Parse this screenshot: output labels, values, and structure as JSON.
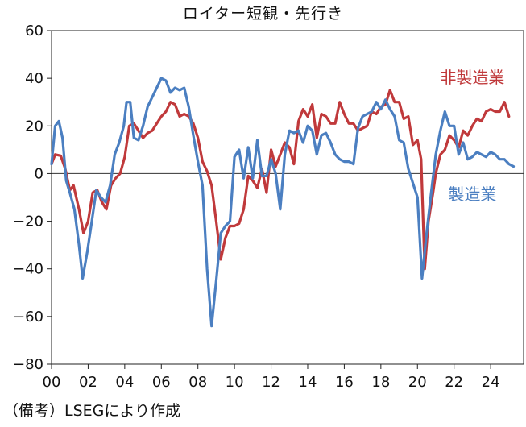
{
  "title": "ロイター短観・先行き",
  "note": "（備考）LSEGにより作成",
  "chart_data": {
    "type": "line",
    "title": "ロイター短観・先行き",
    "ylim": [
      -80,
      60
    ],
    "yticks": [
      60,
      40,
      20,
      0,
      -20,
      -40,
      -60,
      -80
    ],
    "xlim": [
      2000,
      2025.8
    ],
    "xticks": [
      {
        "value": 2000,
        "label": "00"
      },
      {
        "value": 2002,
        "label": "02"
      },
      {
        "value": 2004,
        "label": "04"
      },
      {
        "value": 2006,
        "label": "06"
      },
      {
        "value": 2008,
        "label": "08"
      },
      {
        "value": 2010,
        "label": "10"
      },
      {
        "value": 2012,
        "label": "12"
      },
      {
        "value": 2014,
        "label": "14"
      },
      {
        "value": 2016,
        "label": "16"
      },
      {
        "value": 2018,
        "label": "18"
      },
      {
        "value": 2020,
        "label": "20"
      },
      {
        "value": 2022,
        "label": "22"
      },
      {
        "value": 2024,
        "label": "24"
      }
    ],
    "zero_line": true,
    "series": [
      {
        "name": "非製造業",
        "color": "#c0393b",
        "label_position": {
          "x": 2023.0,
          "y": 38
        },
        "points": [
          [
            2000.0,
            4
          ],
          [
            2000.2,
            8
          ],
          [
            2000.5,
            7.5
          ],
          [
            2000.75,
            2
          ],
          [
            2001.0,
            -7
          ],
          [
            2001.2,
            -5
          ],
          [
            2001.5,
            -15
          ],
          [
            2001.75,
            -25
          ],
          [
            2002.0,
            -20
          ],
          [
            2002.25,
            -8
          ],
          [
            2002.5,
            -7
          ],
          [
            2002.75,
            -12
          ],
          [
            2003.0,
            -15
          ],
          [
            2003.25,
            -5
          ],
          [
            2003.5,
            -2
          ],
          [
            2003.75,
            0
          ],
          [
            2004.0,
            7
          ],
          [
            2004.25,
            20
          ],
          [
            2004.5,
            21
          ],
          [
            2004.75,
            18
          ],
          [
            2005.0,
            15
          ],
          [
            2005.25,
            17
          ],
          [
            2005.5,
            18
          ],
          [
            2005.75,
            21
          ],
          [
            2006.0,
            24
          ],
          [
            2006.25,
            26
          ],
          [
            2006.5,
            30
          ],
          [
            2006.75,
            29
          ],
          [
            2007.0,
            24
          ],
          [
            2007.25,
            25
          ],
          [
            2007.5,
            24
          ],
          [
            2007.75,
            21
          ],
          [
            2008.0,
            15
          ],
          [
            2008.25,
            5
          ],
          [
            2008.5,
            1
          ],
          [
            2008.75,
            -5
          ],
          [
            2009.0,
            -20
          ],
          [
            2009.25,
            -36
          ],
          [
            2009.5,
            -27
          ],
          [
            2009.75,
            -22
          ],
          [
            2010.0,
            -22
          ],
          [
            2010.25,
            -21
          ],
          [
            2010.5,
            -15
          ],
          [
            2010.75,
            -1
          ],
          [
            2011.0,
            -3
          ],
          [
            2011.25,
            -6
          ],
          [
            2011.5,
            2
          ],
          [
            2011.75,
            -8
          ],
          [
            2012.0,
            10
          ],
          [
            2012.25,
            3
          ],
          [
            2012.5,
            8
          ],
          [
            2012.75,
            13
          ],
          [
            2013.0,
            11
          ],
          [
            2013.25,
            4
          ],
          [
            2013.5,
            22
          ],
          [
            2013.75,
            27
          ],
          [
            2014.0,
            24
          ],
          [
            2014.25,
            29
          ],
          [
            2014.5,
            15
          ],
          [
            2014.75,
            25
          ],
          [
            2015.0,
            24
          ],
          [
            2015.25,
            21
          ],
          [
            2015.5,
            21
          ],
          [
            2015.75,
            30
          ],
          [
            2016.0,
            25
          ],
          [
            2016.25,
            21
          ],
          [
            2016.5,
            21
          ],
          [
            2016.75,
            18
          ],
          [
            2017.0,
            19
          ],
          [
            2017.25,
            20
          ],
          [
            2017.5,
            26
          ],
          [
            2017.75,
            25
          ],
          [
            2018.0,
            28
          ],
          [
            2018.25,
            29
          ],
          [
            2018.5,
            35
          ],
          [
            2018.75,
            30
          ],
          [
            2019.0,
            30
          ],
          [
            2019.25,
            23
          ],
          [
            2019.5,
            24
          ],
          [
            2019.75,
            12
          ],
          [
            2020.0,
            14
          ],
          [
            2020.2,
            6
          ],
          [
            2020.4,
            -40
          ],
          [
            2020.6,
            -20
          ],
          [
            2020.85,
            -8
          ],
          [
            2021.0,
            0
          ],
          [
            2021.25,
            8
          ],
          [
            2021.5,
            10
          ],
          [
            2021.75,
            16
          ],
          [
            2022.0,
            14
          ],
          [
            2022.25,
            11
          ],
          [
            2022.5,
            18
          ],
          [
            2022.75,
            16
          ],
          [
            2023.0,
            20
          ],
          [
            2023.25,
            23
          ],
          [
            2023.5,
            22
          ],
          [
            2023.75,
            26
          ],
          [
            2024.0,
            27
          ],
          [
            2024.25,
            26
          ],
          [
            2024.5,
            26
          ],
          [
            2024.75,
            30
          ],
          [
            2025.0,
            24
          ]
        ]
      },
      {
        "name": "製造業",
        "color": "#4b7fc1",
        "label_position": {
          "x": 2023.0,
          "y": -11
        },
        "points": [
          [
            2000.0,
            4
          ],
          [
            2000.2,
            20
          ],
          [
            2000.4,
            22
          ],
          [
            2000.6,
            15
          ],
          [
            2000.8,
            -3
          ],
          [
            2001.0,
            -8
          ],
          [
            2001.25,
            -15
          ],
          [
            2001.5,
            -30
          ],
          [
            2001.7,
            -44
          ],
          [
            2001.95,
            -33
          ],
          [
            2002.2,
            -20
          ],
          [
            2002.45,
            -7
          ],
          [
            2002.7,
            -10
          ],
          [
            2002.95,
            -12
          ],
          [
            2003.2,
            -5
          ],
          [
            2003.45,
            8
          ],
          [
            2003.7,
            13
          ],
          [
            2003.95,
            20
          ],
          [
            2004.1,
            30
          ],
          [
            2004.3,
            30
          ],
          [
            2004.5,
            15
          ],
          [
            2004.75,
            14
          ],
          [
            2005.0,
            20
          ],
          [
            2005.25,
            28
          ],
          [
            2005.5,
            32
          ],
          [
            2005.75,
            36
          ],
          [
            2006.0,
            40
          ],
          [
            2006.25,
            39
          ],
          [
            2006.5,
            34
          ],
          [
            2006.75,
            36
          ],
          [
            2007.0,
            35
          ],
          [
            2007.25,
            36
          ],
          [
            2007.5,
            28
          ],
          [
            2007.75,
            16
          ],
          [
            2008.0,
            5
          ],
          [
            2008.25,
            -5
          ],
          [
            2008.5,
            -40
          ],
          [
            2008.75,
            -64
          ],
          [
            2009.0,
            -45
          ],
          [
            2009.25,
            -25
          ],
          [
            2009.5,
            -22
          ],
          [
            2009.75,
            -20
          ],
          [
            2010.0,
            7
          ],
          [
            2010.25,
            10
          ],
          [
            2010.5,
            -2
          ],
          [
            2010.75,
            11
          ],
          [
            2011.0,
            -2
          ],
          [
            2011.25,
            14
          ],
          [
            2011.5,
            -1
          ],
          [
            2011.75,
            -1
          ],
          [
            2012.0,
            6
          ],
          [
            2012.25,
            0
          ],
          [
            2012.5,
            -15
          ],
          [
            2012.75,
            8
          ],
          [
            2013.0,
            18
          ],
          [
            2013.25,
            17
          ],
          [
            2013.5,
            18
          ],
          [
            2013.75,
            13
          ],
          [
            2014.0,
            20
          ],
          [
            2014.25,
            18
          ],
          [
            2014.5,
            8
          ],
          [
            2014.75,
            16
          ],
          [
            2015.0,
            17
          ],
          [
            2015.25,
            13
          ],
          [
            2015.5,
            8
          ],
          [
            2015.75,
            6
          ],
          [
            2016.0,
            5
          ],
          [
            2016.25,
            5
          ],
          [
            2016.5,
            4
          ],
          [
            2016.75,
            19
          ],
          [
            2017.0,
            24
          ],
          [
            2017.25,
            25
          ],
          [
            2017.5,
            26
          ],
          [
            2017.75,
            30
          ],
          [
            2018.0,
            27
          ],
          [
            2018.25,
            31
          ],
          [
            2018.5,
            27
          ],
          [
            2018.75,
            24
          ],
          [
            2019.0,
            14
          ],
          [
            2019.25,
            13
          ],
          [
            2019.5,
            2
          ],
          [
            2019.75,
            -4
          ],
          [
            2020.0,
            -10
          ],
          [
            2020.25,
            -44
          ],
          [
            2020.5,
            -25
          ],
          [
            2020.75,
            -8
          ],
          [
            2021.0,
            8
          ],
          [
            2021.25,
            18
          ],
          [
            2021.5,
            26
          ],
          [
            2021.75,
            20
          ],
          [
            2022.0,
            20
          ],
          [
            2022.25,
            8
          ],
          [
            2022.5,
            13
          ],
          [
            2022.75,
            6
          ],
          [
            2023.0,
            7
          ],
          [
            2023.25,
            9
          ],
          [
            2023.5,
            8
          ],
          [
            2023.75,
            7
          ],
          [
            2024.0,
            9
          ],
          [
            2024.25,
            8
          ],
          [
            2024.5,
            6
          ],
          [
            2024.75,
            6
          ],
          [
            2025.0,
            4
          ],
          [
            2025.25,
            3
          ]
        ]
      }
    ]
  }
}
